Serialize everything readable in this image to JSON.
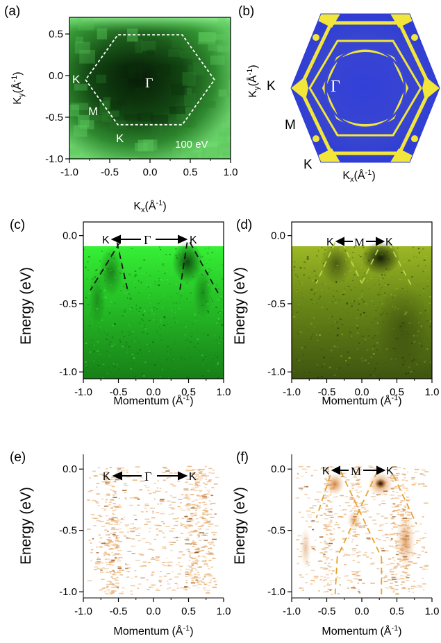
{
  "colors": {
    "panel_a_dark": "#0a2a0a",
    "panel_a_bright": "#7de87d",
    "panel_b_bg": "#2f3dd4",
    "panel_b_line": "#f2e63a",
    "panel_c_bright": "#2ee82e",
    "panel_c_dark": "#0f3a12",
    "panel_d_bright": "#8fae1c",
    "panel_d_dark": "#1f2e0f",
    "panel_ef_dots": "#e0a060",
    "dashed_dark": "#111111",
    "dashed_green": "#b7d84a",
    "dashed_orange": "#e7a02a"
  },
  "chart_data": [
    {
      "panel": "a",
      "type": "heatmap",
      "panel_label": "(a)",
      "xlabel": "K",
      "xlabel_sub": "x",
      "xlabel_unit": "(Å",
      "xlabel_exp": "-1",
      "xlabel_close": ")",
      "ylabel": "K",
      "ylabel_sub": "y",
      "ylabel_unit": "(Å",
      "ylabel_exp": "-1",
      "ylabel_close": ")",
      "xlim": [
        -1.0,
        1.0
      ],
      "ylim": [
        -1.0,
        0.7
      ],
      "xticks": [
        "-1.0",
        "-0.5",
        "0.0",
        "0.5",
        "1.0"
      ],
      "yticks": [
        "0.5",
        "0.0",
        "-0.5",
        "-1.0"
      ],
      "brillouin_zone": {
        "center": [
          0.0,
          -0.05
        ],
        "radius": 0.8
      },
      "annotations": {
        "k1": "K",
        "gamma": "Γ",
        "m": "M",
        "k2": "K",
        "energy": "100 eV"
      }
    },
    {
      "panel": "b",
      "type": "heatmap",
      "panel_label": "(b)",
      "xlabel": "K",
      "xlabel_sub": "x",
      "xlabel_unit": "(Å",
      "xlabel_exp": "-1",
      "xlabel_close": ")",
      "ylabel": "K",
      "ylabel_sub": "y",
      "ylabel_unit": "(Å",
      "ylabel_exp": "-1",
      "ylabel_close": ")",
      "annotations": {
        "k1": "K",
        "gamma": "Γ",
        "m": "M",
        "k2": "K"
      }
    },
    {
      "panel": "c",
      "type": "heatmap",
      "panel_label": "(c)",
      "xlabel": "Momentum",
      "xlabel_unit": "(Å",
      "xlabel_exp": "-1",
      "xlabel_close": ")",
      "ylabel": "Energy (eV)",
      "xlim": [
        -1.0,
        1.0
      ],
      "ylim": [
        -1.05,
        0.1
      ],
      "xticks": [
        "-1.0",
        "-0.5",
        "0.0",
        "0.5",
        "1.0"
      ],
      "yticks": [
        "0.0",
        "-0.5",
        "-1.0"
      ],
      "annotations": {
        "left": "K",
        "center": "Γ",
        "right": "K"
      },
      "dashed_lines": [
        {
          "x": [
            -0.48,
            -0.9
          ],
          "y": [
            -0.05,
            -0.4
          ]
        },
        {
          "x": [
            -0.52,
            -0.36
          ],
          "y": [
            -0.05,
            -0.42
          ]
        },
        {
          "x": [
            0.48,
            0.37
          ],
          "y": [
            -0.05,
            -0.42
          ]
        },
        {
          "x": [
            0.52,
            0.92
          ],
          "y": [
            -0.05,
            -0.42
          ]
        }
      ]
    },
    {
      "panel": "d",
      "type": "heatmap",
      "panel_label": "(d)",
      "xlabel": "Momentum",
      "xlabel_unit": "(Å",
      "xlabel_exp": "-1",
      "xlabel_close": ")",
      "ylabel": "Energy (eV)",
      "xlim": [
        -1.0,
        1.0
      ],
      "ylim": [
        -1.05,
        0.1
      ],
      "xticks": [
        "-1.0",
        "-0.5",
        "0.0",
        "0.5",
        "1.0"
      ],
      "yticks": [
        "0.0",
        "-0.5",
        "-1.0"
      ],
      "annotations": {
        "left": "K",
        "center": "M",
        "right": "K"
      },
      "dashed_lines": [
        {
          "x": [
            -0.38,
            -0.65
          ],
          "y": [
            -0.05,
            -0.35
          ]
        },
        {
          "x": [
            -0.28,
            0.0
          ],
          "y": [
            -0.05,
            -0.35
          ]
        },
        {
          "x": [
            0.0,
            0.28
          ],
          "y": [
            -0.35,
            -0.05
          ]
        },
        {
          "x": [
            0.38,
            0.72
          ],
          "y": [
            -0.05,
            -0.38
          ]
        }
      ]
    },
    {
      "panel": "e",
      "type": "heatmap",
      "panel_label": "(e)",
      "xlabel": "Momentum",
      "xlabel_unit": "(Å",
      "xlabel_exp": "-1",
      "xlabel_close": ")",
      "ylabel": "Energy (eV)",
      "xlim": [
        -1.0,
        1.0
      ],
      "ylim": [
        -1.05,
        0.12
      ],
      "xticks": [
        "-1.0",
        "-0.5",
        "0.0",
        "0.5",
        "1.0"
      ],
      "yticks": [
        "0.0",
        "-0.5",
        "-1.0"
      ],
      "annotations": {
        "left": "K",
        "center": "Γ",
        "right": "K"
      }
    },
    {
      "panel": "f",
      "type": "heatmap",
      "panel_label": "(f)",
      "xlabel": "Momentum",
      "xlabel_unit": "(Å",
      "xlabel_exp": "-1",
      "xlabel_close": ")",
      "ylabel": "Energy (eV)",
      "xlim": [
        -1.0,
        1.0
      ],
      "ylim": [
        -1.05,
        0.12
      ],
      "xticks": [
        "-1.0",
        "-0.5",
        "0.0",
        "0.5",
        "1.0"
      ],
      "yticks": [
        "0.0",
        "-0.5",
        "-1.0"
      ],
      "annotations": {
        "left": "K",
        "center": "M",
        "right": "K"
      },
      "dashed_lines": [
        {
          "x": [
            -0.45,
            -0.65
          ],
          "y": [
            -0.05,
            -0.4
          ]
        },
        {
          "x": [
            -0.3,
            0.28
          ],
          "y": [
            -0.02,
            -0.72
          ]
        },
        {
          "x": [
            0.28,
            0.28
          ],
          "y": [
            -0.72,
            -1.02
          ]
        },
        {
          "x": [
            0.22,
            -0.35
          ],
          "y": [
            -0.02,
            -0.72
          ]
        },
        {
          "x": [
            -0.35,
            -0.38
          ],
          "y": [
            -0.72,
            -1.02
          ]
        },
        {
          "x": [
            0.45,
            0.78
          ],
          "y": [
            -0.05,
            -0.45
          ]
        }
      ]
    }
  ]
}
